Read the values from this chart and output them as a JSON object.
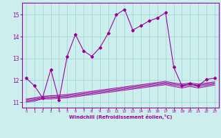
{
  "xlabel": "Windchill (Refroidissement éolien,°C)",
  "background_color": "#cceeed",
  "grid_color": "#aad8d8",
  "line_color": "#990099",
  "x_ticks": [
    0,
    1,
    2,
    3,
    4,
    5,
    6,
    7,
    8,
    9,
    10,
    11,
    12,
    13,
    14,
    15,
    16,
    17,
    18,
    19,
    20,
    21,
    22,
    23
  ],
  "y_ticks": [
    11,
    12,
    13,
    14,
    15
  ],
  "ylim": [
    10.75,
    15.55
  ],
  "xlim": [
    -0.5,
    23.5
  ],
  "main_line": [
    12.1,
    11.75,
    11.2,
    12.5,
    11.1,
    13.1,
    14.1,
    13.35,
    13.1,
    13.5,
    14.15,
    15.0,
    15.25,
    14.3,
    14.5,
    14.72,
    14.85,
    15.1,
    12.6,
    11.75,
    11.85,
    11.75,
    12.05,
    12.1
  ],
  "flat_lines": [
    [
      11.0,
      11.05,
      11.15,
      11.15,
      11.18,
      11.2,
      11.25,
      11.3,
      11.35,
      11.4,
      11.45,
      11.5,
      11.55,
      11.6,
      11.65,
      11.7,
      11.75,
      11.8,
      11.72,
      11.65,
      11.72,
      11.65,
      11.72,
      11.78
    ],
    [
      11.05,
      11.1,
      11.18,
      11.2,
      11.22,
      11.25,
      11.3,
      11.35,
      11.4,
      11.45,
      11.5,
      11.55,
      11.6,
      11.65,
      11.7,
      11.75,
      11.8,
      11.85,
      11.78,
      11.72,
      11.78,
      11.72,
      11.78,
      11.83
    ],
    [
      11.1,
      11.15,
      11.22,
      11.25,
      11.27,
      11.3,
      11.35,
      11.4,
      11.45,
      11.5,
      11.55,
      11.6,
      11.65,
      11.7,
      11.75,
      11.8,
      11.85,
      11.9,
      11.83,
      11.78,
      11.83,
      11.78,
      11.83,
      11.88
    ],
    [
      11.15,
      11.2,
      11.27,
      11.3,
      11.32,
      11.35,
      11.4,
      11.45,
      11.5,
      11.55,
      11.6,
      11.65,
      11.7,
      11.75,
      11.8,
      11.85,
      11.9,
      11.95,
      11.88,
      11.83,
      11.88,
      11.83,
      11.88,
      11.93
    ]
  ]
}
